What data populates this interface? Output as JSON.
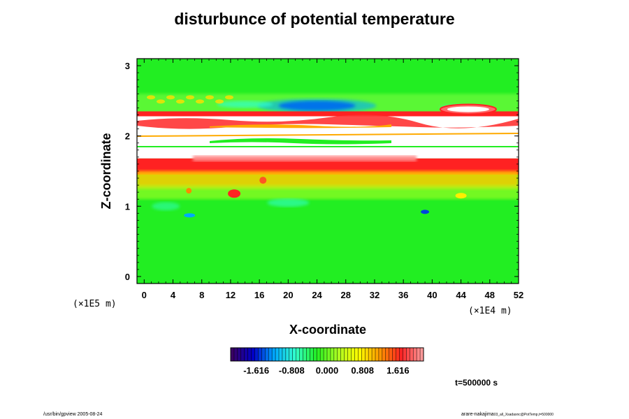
{
  "chart_data": {
    "type": "heatmap",
    "title": "disturbunce of potential temperature",
    "xlabel": "X-coordinate",
    "ylabel": "Z-coordinate",
    "x_unit": "(×1E4 m)",
    "y_unit": "(×1E5 m)",
    "xlim": [
      -1,
      52
    ],
    "ylim": [
      -0.1,
      3.1
    ],
    "x_ticks": [
      0,
      4,
      8,
      12,
      16,
      20,
      24,
      28,
      32,
      36,
      40,
      44,
      48,
      52
    ],
    "y_ticks": [
      0,
      1,
      2,
      3
    ],
    "colorbar": {
      "tick_values": [
        -1.616,
        -0.808,
        0.0,
        0.808,
        1.616
      ],
      "tick_labels": [
        "-1.616",
        "-0.808",
        "0.000",
        "0.808",
        "1.616"
      ],
      "range": [
        -2.2,
        2.2
      ],
      "colors": [
        "#3a0066",
        "#0000c8",
        "#00aaff",
        "#33ffcc",
        "#22ee22",
        "#aaff22",
        "#ffff00",
        "#ff9900",
        "#ff2222",
        "#ff9a9a"
      ]
    },
    "features": [
      {
        "name": "background",
        "value": 0.0
      },
      {
        "name": "upper white band (undefined)",
        "z_range": [
          1.82,
          1.86
        ]
      },
      {
        "name": "lower white band (undefined)",
        "z_range": [
          1.86,
          1.68
        ]
      },
      {
        "name": "warm layer",
        "z_range": [
          1.48,
          1.68
        ],
        "value": 1.6
      },
      {
        "name": "cool layer",
        "z_range": [
          2.35,
          2.45
        ],
        "value": -1.5
      }
    ],
    "grid": false,
    "legend": "bottom-center colorbar"
  },
  "annotations": {
    "time": "t=500000 s",
    "footer_left": "/usr/bin/gpview 2005-08-24",
    "footer_right": "arare-nakajima",
    "footer_right_sub": "03_all_Xsadaxnc@PotTemp,t=500000"
  },
  "colors": {
    "background": "#ffffff",
    "undefined": "#ffffff",
    "frame": "#000000"
  }
}
